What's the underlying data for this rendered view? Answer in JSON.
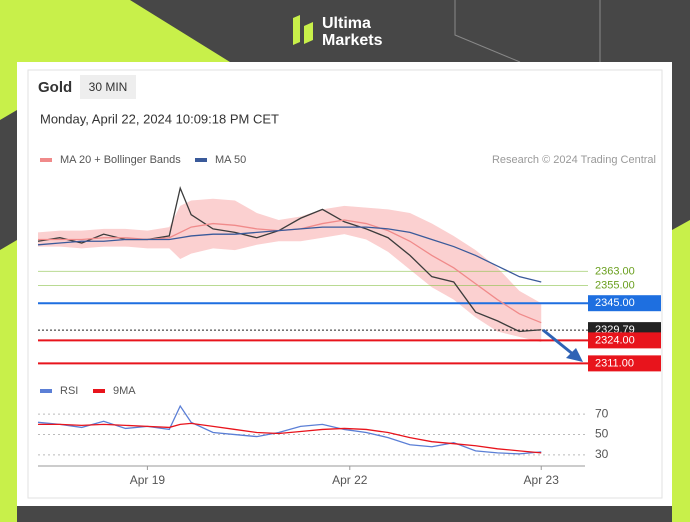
{
  "logo": [
    "Ultima",
    "Markets"
  ],
  "instrument": "Gold",
  "timeframe": "30 MIN",
  "timestamp": "Monday, April 22, 2024 10:09:18 PM CET",
  "credit": "Research © 2024 Trading Central",
  "chart_data": [
    {
      "type": "line",
      "x": [
        0,
        4,
        8,
        12,
        16,
        20,
        24,
        26,
        28,
        32,
        36,
        40,
        44,
        48,
        52,
        56,
        60,
        64,
        68,
        72,
        76,
        80,
        84,
        88,
        92
      ],
      "xlim": [
        0,
        100
      ],
      "ylim": [
        2305,
        2418
      ],
      "band": {
        "color": "#fbd0d0",
        "upper": [
          2385,
          2386,
          2386,
          2387,
          2387,
          2386,
          2388,
          2400,
          2403,
          2404,
          2403,
          2396,
          2392,
          2394,
          2398,
          2400,
          2399,
          2398,
          2396,
          2390,
          2383,
          2375,
          2365,
          2352,
          2345
        ],
        "lower": [
          2377,
          2377,
          2376,
          2377,
          2377,
          2376,
          2376,
          2370,
          2373,
          2376,
          2375,
          2378,
          2380,
          2380,
          2382,
          2384,
          2381,
          2374,
          2364,
          2354,
          2347,
          2337,
          2329,
          2326,
          2323
        ]
      },
      "series": [
        {
          "color": "#3c3c3c",
          "values": [
            2380,
            2382,
            2379,
            2384,
            2381,
            2381,
            2383,
            2410,
            2395,
            2387,
            2385,
            2382,
            2386,
            2393,
            2398,
            2391,
            2387,
            2382,
            2372,
            2360,
            2357,
            2340,
            2335,
            2329,
            2330
          ]
        },
        {
          "name": "MA 20 + Bollinger Bands",
          "color": "#f08a8a",
          "values": [
            2381,
            2381,
            2381,
            2382,
            2382,
            2381,
            2382,
            2385,
            2388,
            2390,
            2389,
            2387,
            2386,
            2387,
            2390,
            2392,
            2390,
            2386,
            2380,
            2372,
            2365,
            2356,
            2347,
            2339,
            2334
          ]
        },
        {
          "name": "MA 50",
          "color": "#3a5a9a",
          "values": [
            2378,
            2379,
            2380,
            2380,
            2381,
            2381,
            2381,
            2382,
            2383,
            2384,
            2384,
            2385,
            2386,
            2387,
            2388,
            2388,
            2388,
            2387,
            2385,
            2381,
            2377,
            2372,
            2366,
            2360,
            2357
          ]
        }
      ],
      "levels": [
        {
          "value": 2363,
          "label": "2363.00",
          "color": "#8bc34a",
          "filled": false
        },
        {
          "value": 2355,
          "label": "2355.00",
          "color": "#8bc34a",
          "filled": false
        },
        {
          "value": 2345,
          "label": "2345.00",
          "color": "#1e6fe0",
          "filled": true
        },
        {
          "value": 2329.79,
          "label": "2329.79",
          "color": "#222222",
          "filled": true,
          "dashed": true
        },
        {
          "value": 2324,
          "label": "2324.00",
          "color": "#e8141c",
          "filled": true
        },
        {
          "value": 2311,
          "label": "2311.00",
          "color": "#e8141c",
          "filled": true
        }
      ]
    },
    {
      "type": "line",
      "x": [
        0,
        4,
        8,
        12,
        16,
        20,
        24,
        26,
        28,
        32,
        36,
        40,
        44,
        48,
        52,
        56,
        60,
        64,
        68,
        72,
        76,
        80,
        84,
        88,
        92
      ],
      "xlim": [
        0,
        100
      ],
      "ylim": [
        25,
        80
      ],
      "yticks": [
        30,
        50,
        70
      ],
      "grid": true,
      "xticks": [
        {
          "value": 20,
          "label": "Apr 19"
        },
        {
          "value": 57,
          "label": "Apr 22"
        },
        {
          "value": 92,
          "label": "Apr 23"
        }
      ],
      "series": [
        {
          "name": "RSI",
          "color": "#5b7fd6",
          "values": [
            62,
            60,
            57,
            63,
            56,
            58,
            55,
            78,
            62,
            52,
            50,
            48,
            52,
            58,
            60,
            55,
            52,
            47,
            40,
            38,
            42,
            34,
            32,
            31,
            33
          ]
        },
        {
          "name": "9MA",
          "color": "#e8141c",
          "values": [
            60,
            60,
            59,
            60,
            59,
            58,
            57,
            60,
            61,
            58,
            55,
            52,
            51,
            53,
            55,
            56,
            55,
            52,
            47,
            43,
            41,
            39,
            36,
            34,
            32
          ]
        }
      ]
    }
  ]
}
